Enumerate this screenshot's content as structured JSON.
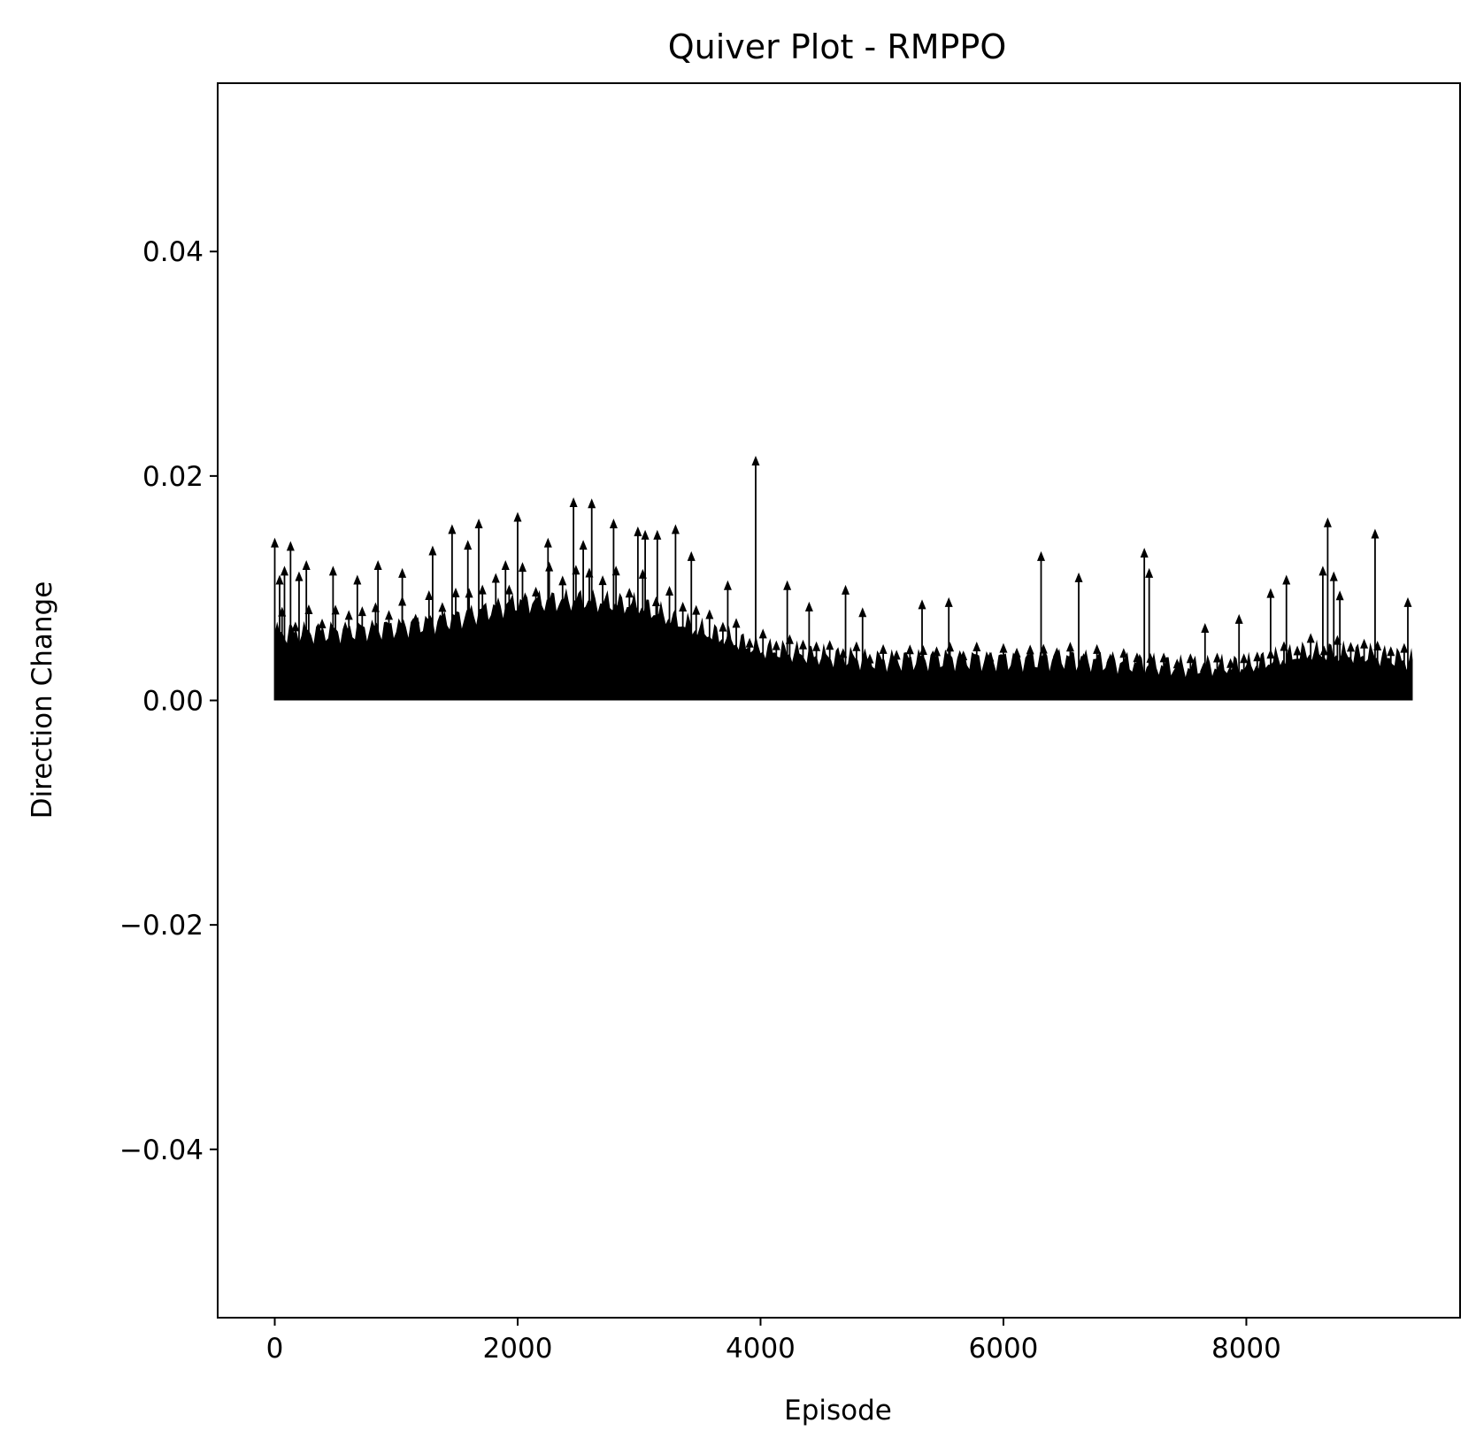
{
  "chart_data": {
    "type": "quiver",
    "title": "Quiver Plot - RMPPO",
    "xlabel": "Episode",
    "ylabel": "Direction Change",
    "xlim": [
      -470,
      9760
    ],
    "ylim": [
      -0.055,
      0.055
    ],
    "xticks": [
      0,
      2000,
      4000,
      6000,
      8000
    ],
    "xtick_labels": [
      "0",
      "2000",
      "4000",
      "6000",
      "8000"
    ],
    "yticks": [
      -0.04,
      -0.02,
      0.0,
      0.02,
      0.04
    ],
    "ytick_labels": [
      "−0.04",
      "−0.02",
      "0.00",
      "0.02",
      "0.04"
    ],
    "grid": false,
    "arrow_color": "#000000",
    "series": [
      {
        "episode_range": [
          0,
          9370
        ],
        "direction": "up",
        "dense_fill_upper": [
          [
            0,
            0.006
          ],
          [
            500,
            0.0062
          ],
          [
            1000,
            0.0066
          ],
          [
            1500,
            0.0074
          ],
          [
            2000,
            0.0088
          ],
          [
            2500,
            0.009
          ],
          [
            3000,
            0.0085
          ],
          [
            3500,
            0.0063
          ],
          [
            4000,
            0.0046
          ],
          [
            4500,
            0.004
          ],
          [
            5000,
            0.0036
          ],
          [
            5500,
            0.0038
          ],
          [
            6000,
            0.0037
          ],
          [
            6500,
            0.0038
          ],
          [
            7000,
            0.0034
          ],
          [
            7500,
            0.003
          ],
          [
            8000,
            0.0031
          ],
          [
            8500,
            0.0043
          ],
          [
            9000,
            0.0041
          ],
          [
            9370,
            0.0036
          ]
        ],
        "peak_arrows": [
          [
            0,
            0.0145
          ],
          [
            40,
            0.0112
          ],
          [
            80,
            0.012
          ],
          [
            130,
            0.0142
          ],
          [
            200,
            0.0115
          ],
          [
            260,
            0.0125
          ],
          [
            480,
            0.012
          ],
          [
            680,
            0.0112
          ],
          [
            850,
            0.0125
          ],
          [
            1050,
            0.0118
          ],
          [
            1300,
            0.0138
          ],
          [
            1460,
            0.0157
          ],
          [
            1590,
            0.0143
          ],
          [
            1680,
            0.0162
          ],
          [
            1900,
            0.0125
          ],
          [
            2000,
            0.0168
          ],
          [
            2250,
            0.0145
          ],
          [
            2460,
            0.0181
          ],
          [
            2540,
            0.0143
          ],
          [
            2610,
            0.018
          ],
          [
            2790,
            0.0162
          ],
          [
            2990,
            0.0155
          ],
          [
            3050,
            0.0152
          ],
          [
            3150,
            0.0152
          ],
          [
            3300,
            0.0157
          ],
          [
            3430,
            0.0133
          ],
          [
            3730,
            0.0107
          ],
          [
            3960,
            0.0218
          ],
          [
            4220,
            0.0107
          ],
          [
            4400,
            0.0088
          ],
          [
            4700,
            0.0103
          ],
          [
            4840,
            0.0083
          ],
          [
            5330,
            0.009
          ],
          [
            5550,
            0.0092
          ],
          [
            6310,
            0.0133
          ],
          [
            6620,
            0.0114
          ],
          [
            7160,
            0.0136
          ],
          [
            7200,
            0.0118
          ],
          [
            7660,
            0.0069
          ],
          [
            7940,
            0.0077
          ],
          [
            8200,
            0.01
          ],
          [
            8330,
            0.0112
          ],
          [
            8630,
            0.012
          ],
          [
            8670,
            0.0163
          ],
          [
            8720,
            0.0115
          ],
          [
            8770,
            0.0098
          ],
          [
            9060,
            0.0153
          ],
          [
            9330,
            0.0092
          ]
        ]
      }
    ]
  }
}
